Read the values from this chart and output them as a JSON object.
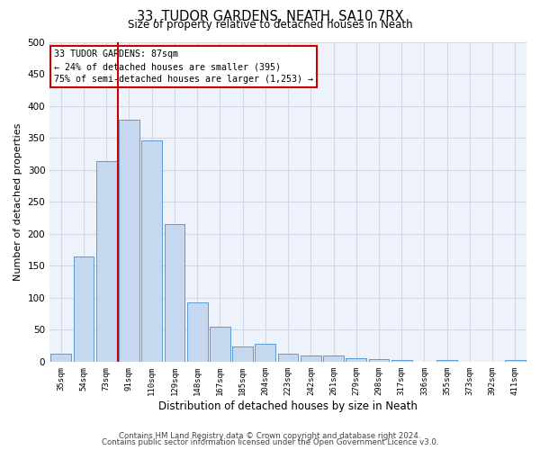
{
  "title": "33, TUDOR GARDENS, NEATH, SA10 7RX",
  "subtitle": "Size of property relative to detached houses in Neath",
  "xlabel": "Distribution of detached houses by size in Neath",
  "ylabel": "Number of detached properties",
  "bar_labels": [
    "35sqm",
    "54sqm",
    "73sqm",
    "91sqm",
    "110sqm",
    "129sqm",
    "148sqm",
    "167sqm",
    "185sqm",
    "204sqm",
    "223sqm",
    "242sqm",
    "261sqm",
    "279sqm",
    "298sqm",
    "317sqm",
    "336sqm",
    "355sqm",
    "373sqm",
    "392sqm",
    "411sqm"
  ],
  "bar_values": [
    13,
    165,
    313,
    378,
    346,
    215,
    93,
    55,
    24,
    28,
    13,
    10,
    9,
    6,
    4,
    3,
    0,
    3,
    0,
    0,
    3
  ],
  "bar_color": "#c5d8f0",
  "bar_edge_color": "#5b9bd5",
  "vline_bin_index": 3,
  "annotation_line1": "33 TUDOR GARDENS: 87sqm",
  "annotation_line2": "← 24% of detached houses are smaller (395)",
  "annotation_line3": "75% of semi-detached houses are larger (1,253) →",
  "annotation_box_color": "#ffffff",
  "annotation_box_edge_color": "#cc0000",
  "vline_color": "#cc0000",
  "ylim": [
    0,
    500
  ],
  "yticks": [
    0,
    50,
    100,
    150,
    200,
    250,
    300,
    350,
    400,
    450,
    500
  ],
  "grid_color": "#d0d8e8",
  "footer_line1": "Contains HM Land Registry data © Crown copyright and database right 2024.",
  "footer_line2": "Contains public sector information licensed under the Open Government Licence v3.0.",
  "background_color": "#eef2fa"
}
